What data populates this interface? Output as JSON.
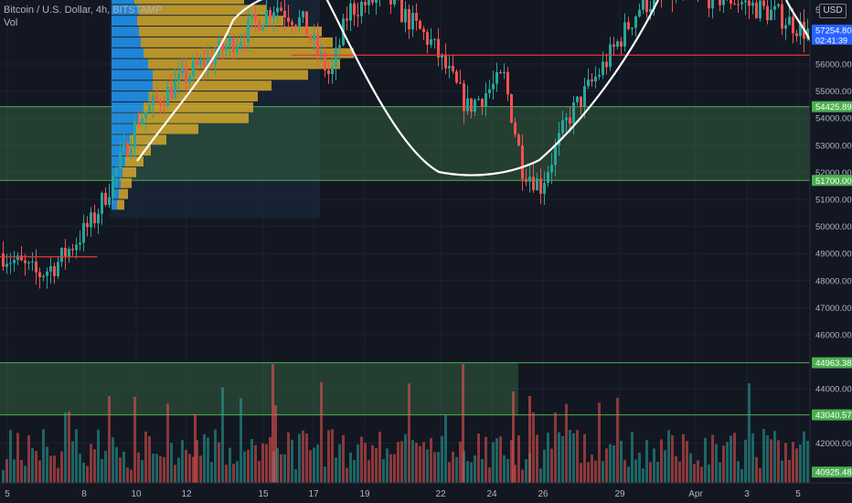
{
  "legend": {
    "symbol": "Bitcoin / U.S. Dollar, 4h, BITSTAMP",
    "vol": "Vol"
  },
  "currency_badge": "USD",
  "colors": {
    "background": "#131722",
    "grid": "#1e2230",
    "up": "#26a69a",
    "down": "#ef5350",
    "zone_fill": "#3c6e47",
    "zone_border": "#4caf50",
    "red_line": "#e53935",
    "profile_blue": "#2196f3",
    "profile_gold": "#d4a72c",
    "arc": "#ffffff",
    "axis_text": "#b2b5be",
    "price_tag": "#4caf50"
  },
  "chart_data": {
    "type": "candlestick",
    "title": "Bitcoin / U.S. Dollar, 4h, BITSTAMP",
    "y_axis": {
      "scale": "linear",
      "range": [
        40500,
        58800
      ],
      "ticks": [
        56000,
        55000,
        54000,
        53000,
        52000,
        51000,
        50000,
        49000,
        48000,
        47000,
        46000,
        44000,
        42000
      ]
    },
    "x_axis": {
      "tick_labels": [
        "5",
        "8",
        "10",
        "12",
        "15",
        "17",
        "19",
        "22",
        "24",
        "26",
        "29",
        "Apr",
        "3",
        "5"
      ]
    },
    "price_tags": [
      {
        "label": "57254.80",
        "sub": "02:41:39",
        "value": 57254.8
      },
      {
        "label": "54425.89",
        "value": 54425.89
      },
      {
        "label": "51700.00",
        "value": 51700.0
      },
      {
        "label": "44963.38",
        "value": 44963.38
      },
      {
        "label": "43040.57",
        "value": 43040.57
      },
      {
        "label": "40925.48",
        "value": 40925.48
      }
    ],
    "top_partial_label": "5",
    "zones": [
      {
        "name": "upper-zone",
        "low": 51700.0,
        "high": 54425.89,
        "from": 0,
        "to": 1
      },
      {
        "name": "lower-zone",
        "low": 43040.57,
        "high": 44963.38,
        "from": 0,
        "to": 0.64
      }
    ],
    "horizontal_lines": [
      {
        "value": 56330,
        "from": 0.36,
        "to": 1
      },
      {
        "value": 48880,
        "from": 0,
        "to": 0.12
      }
    ],
    "volume_profile": {
      "bins": [
        {
          "price": 58400,
          "up": 25,
          "down": 120
        },
        {
          "price": 58000,
          "up": 30,
          "down": 140
        },
        {
          "price": 57600,
          "up": 28,
          "down": 160
        },
        {
          "price": 57200,
          "up": 30,
          "down": 200
        },
        {
          "price": 56800,
          "up": 32,
          "down": 210
        },
        {
          "price": 56400,
          "up": 35,
          "down": 230
        },
        {
          "price": 56000,
          "up": 40,
          "down": 210
        },
        {
          "price": 55600,
          "up": 45,
          "down": 170
        },
        {
          "price": 55200,
          "up": 45,
          "down": 130
        },
        {
          "price": 54800,
          "up": 40,
          "down": 120
        },
        {
          "price": 54400,
          "up": 35,
          "down": 120
        },
        {
          "price": 54000,
          "up": 30,
          "down": 120
        },
        {
          "price": 53600,
          "up": 25,
          "down": 70
        },
        {
          "price": 53200,
          "up": 20,
          "down": 40
        },
        {
          "price": 52800,
          "up": 18,
          "down": 25
        },
        {
          "price": 52400,
          "up": 15,
          "down": 20
        },
        {
          "price": 52000,
          "up": 12,
          "down": 15
        },
        {
          "price": 51600,
          "up": 10,
          "down": 12
        },
        {
          "price": 51200,
          "up": 8,
          "down": 10
        },
        {
          "price": 50800,
          "up": 6,
          "down": 8
        }
      ]
    }
  }
}
